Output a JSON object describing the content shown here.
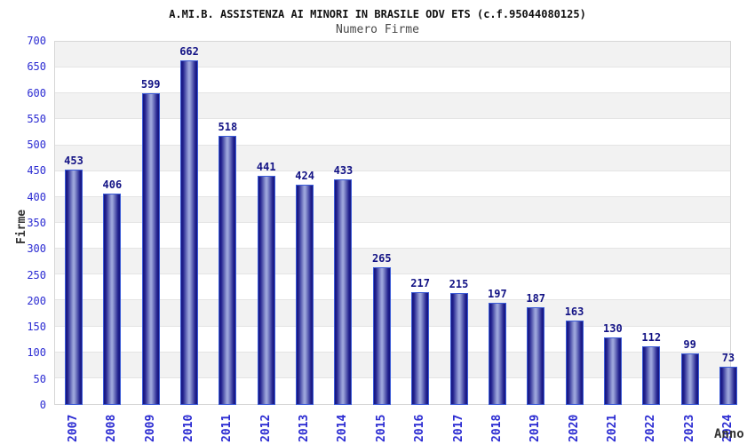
{
  "chart_data": {
    "type": "bar",
    "title": "A.MI.B. ASSISTENZA AI MINORI IN BRASILE ODV ETS (c.f.95044080125)",
    "subtitle": "Numero Firme",
    "xlabel": "Anno",
    "ylabel": "Firme",
    "categories": [
      "2007",
      "2008",
      "2009",
      "2010",
      "2011",
      "2012",
      "2013",
      "2014",
      "2015",
      "2016",
      "2017",
      "2018",
      "2019",
      "2020",
      "2021",
      "2022",
      "2023",
      "2024"
    ],
    "values": [
      453,
      406,
      599,
      662,
      518,
      441,
      424,
      433,
      265,
      217,
      215,
      197,
      187,
      163,
      130,
      112,
      99,
      73
    ],
    "ylim": [
      0,
      700
    ],
    "ytick_step": 50,
    "legend": "none",
    "grid": "horizontal-alternating-bands",
    "colors": {
      "tick_blue": "#2b2bd2",
      "value_navy": "#131385",
      "bar_edge": "#14147e",
      "bar_light": "#9aa3da",
      "bar_border": "#3b5bd7",
      "band_gray": "#f2f2f2",
      "band_white": "#ffffff",
      "grid_line": "#e4e4e4",
      "plot_border": "#d6d6d6",
      "title_color": "#111111",
      "subtitle_color": "#4a4a4a",
      "axis_label_color": "#333333"
    }
  }
}
